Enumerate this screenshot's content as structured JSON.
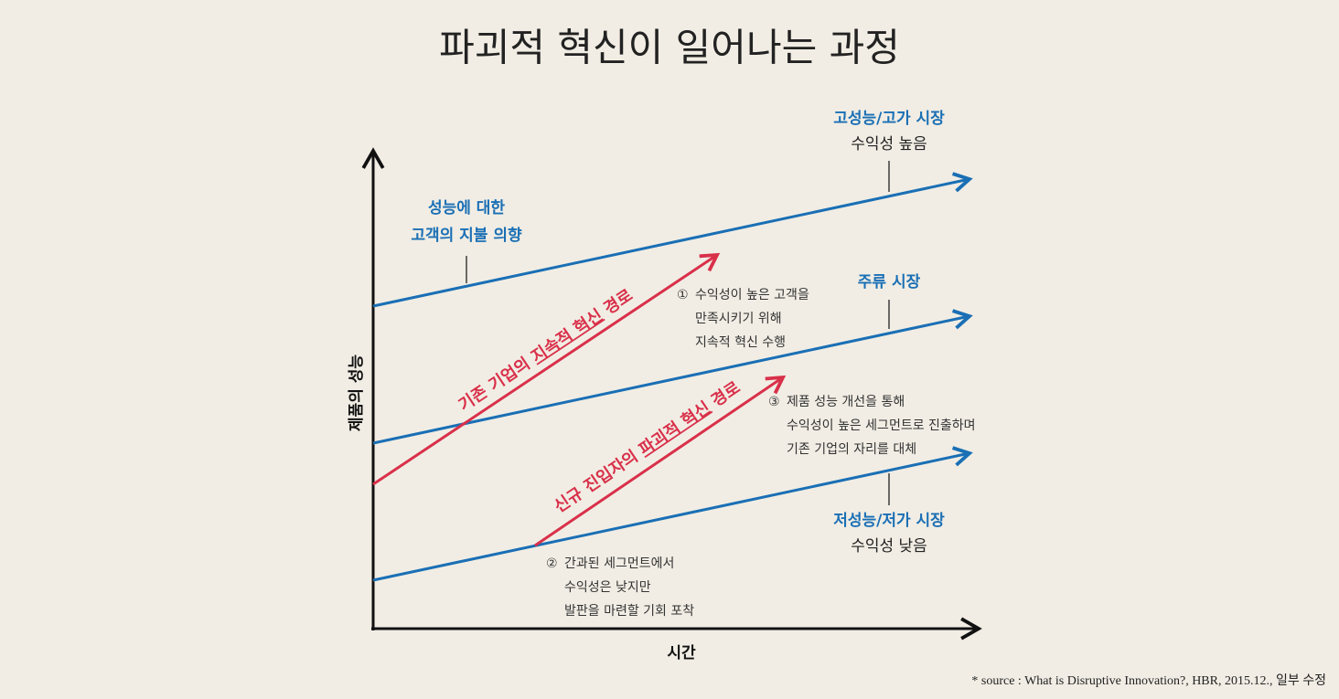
{
  "header": {
    "title": "파괴적 혁신이 일어나는 과정"
  },
  "axes": {
    "y_label": "제품의 성능",
    "x_label": "시간"
  },
  "markets": [
    {
      "name": "고성능/고가 시장",
      "note": "수익성 높음"
    },
    {
      "name": "주류 시장"
    },
    {
      "name": "저성능/저가 시장",
      "note": "수익성 낮음"
    }
  ],
  "willingness": {
    "lines": [
      "성능에 대한",
      "고객의 지불 의향"
    ]
  },
  "paths": [
    {
      "parts": [
        "기존 기업의 ",
        "지속적 혁신",
        " 경로"
      ]
    },
    {
      "parts": [
        "신규 진입자의 ",
        "파괴적 혁신",
        " 경로"
      ]
    }
  ],
  "annotations": [
    {
      "marker": "①",
      "lines": [
        "수익성이 높은 고객을",
        "만족시키기 위해",
        "지속적 혁신 수행"
      ]
    },
    {
      "marker": "②",
      "lines": [
        "간과된 세그먼트에서",
        "수익성은 낮지만",
        "발판을 마련할 기회 포착"
      ]
    },
    {
      "marker": "③",
      "lines": [
        "제품 성능 개선을 통해",
        "수익성이 높은 세그먼트로 진출하며",
        "기존 기업의 자리를 대체"
      ]
    }
  ],
  "source": "* source : What is Disruptive Innovation?, HBR, 2015.12., 일부 수정"
}
